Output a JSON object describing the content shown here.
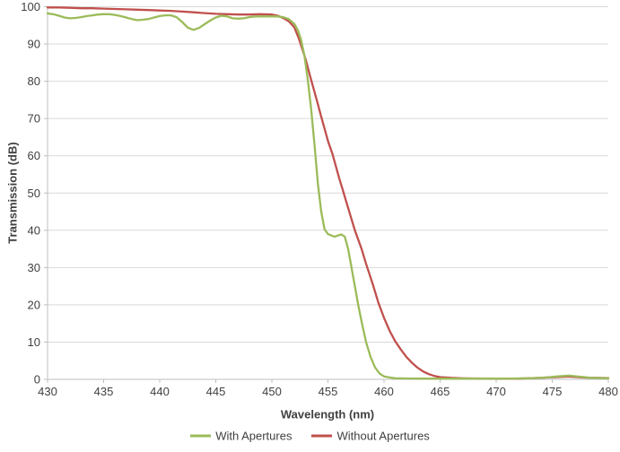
{
  "style": {
    "background": "#ffffff",
    "grid_color": "#d9d9d9",
    "axis_color": "#bfbfbf",
    "text_color": "#404040"
  },
  "chart_data": {
    "type": "line",
    "title": "",
    "xlabel": "Wavelength (nm)",
    "ylabel": "Transmission (dB)",
    "xlim": [
      430,
      480
    ],
    "ylim": [
      0,
      100
    ],
    "x_ticks": [
      430,
      435,
      440,
      445,
      450,
      455,
      460,
      465,
      470,
      475,
      480
    ],
    "y_ticks": [
      0,
      10,
      20,
      30,
      40,
      50,
      60,
      70,
      80,
      90,
      100
    ],
    "grid": "horizontal",
    "legend_position": "bottom-center",
    "series": [
      {
        "name": "Without Apertures",
        "color": "#c0504d",
        "points": [
          [
            430,
            99.8
          ],
          [
            431,
            99.8
          ],
          [
            432,
            99.7
          ],
          [
            433,
            99.6
          ],
          [
            434,
            99.6
          ],
          [
            435,
            99.5
          ],
          [
            436,
            99.4
          ],
          [
            437,
            99.3
          ],
          [
            438,
            99.2
          ],
          [
            439,
            99.1
          ],
          [
            440,
            99.0
          ],
          [
            441,
            98.9
          ],
          [
            442,
            98.7
          ],
          [
            443,
            98.5
          ],
          [
            444,
            98.3
          ],
          [
            445,
            98.1
          ],
          [
            446,
            98.0
          ],
          [
            447,
            97.9
          ],
          [
            448,
            97.9
          ],
          [
            449,
            98.0
          ],
          [
            450,
            97.9
          ],
          [
            450.5,
            97.6
          ],
          [
            451,
            97.0
          ],
          [
            451.5,
            96.1
          ],
          [
            452,
            94.5
          ],
          [
            452.4,
            91.5
          ],
          [
            453,
            86.0
          ],
          [
            453.4,
            81.5
          ],
          [
            454,
            75.0
          ],
          [
            454.4,
            70.5
          ],
          [
            455,
            64.0
          ],
          [
            455.4,
            60.5
          ],
          [
            456,
            54.0
          ],
          [
            456.3,
            51.0
          ],
          [
            457,
            44.0
          ],
          [
            457.4,
            40.0
          ],
          [
            458,
            35.0
          ],
          [
            458.4,
            31.0
          ],
          [
            459,
            25.5
          ],
          [
            459.5,
            20.5
          ],
          [
            460,
            16.5
          ],
          [
            460.5,
            13.0
          ],
          [
            461,
            10.2
          ],
          [
            461.5,
            8.0
          ],
          [
            462,
            6.0
          ],
          [
            462.5,
            4.4
          ],
          [
            463,
            3.1
          ],
          [
            463.5,
            2.1
          ],
          [
            464,
            1.4
          ],
          [
            464.5,
            0.9
          ],
          [
            465,
            0.6
          ],
          [
            466,
            0.4
          ],
          [
            467,
            0.3
          ],
          [
            468,
            0.25
          ],
          [
            470,
            0.2
          ],
          [
            472,
            0.2
          ],
          [
            473.5,
            0.35
          ],
          [
            475,
            0.55
          ],
          [
            476.5,
            0.75
          ],
          [
            478,
            0.45
          ],
          [
            480,
            0.35
          ]
        ]
      },
      {
        "name": "With Apertures",
        "color": "#9bbb59",
        "points": [
          [
            430,
            98.2
          ],
          [
            430.5,
            98.0
          ],
          [
            431,
            97.6
          ],
          [
            431.5,
            97.1
          ],
          [
            432,
            96.9
          ],
          [
            432.5,
            97.0
          ],
          [
            433,
            97.2
          ],
          [
            433.5,
            97.5
          ],
          [
            434,
            97.7
          ],
          [
            434.5,
            97.9
          ],
          [
            435,
            98.0
          ],
          [
            435.5,
            98.0
          ],
          [
            436,
            97.8
          ],
          [
            436.5,
            97.5
          ],
          [
            437,
            97.1
          ],
          [
            437.5,
            96.7
          ],
          [
            438,
            96.4
          ],
          [
            438.5,
            96.5
          ],
          [
            439,
            96.7
          ],
          [
            439.5,
            97.1
          ],
          [
            440,
            97.5
          ],
          [
            440.5,
            97.7
          ],
          [
            441,
            97.7
          ],
          [
            441.5,
            97.2
          ],
          [
            442,
            95.9
          ],
          [
            442.5,
            94.4
          ],
          [
            443,
            93.8
          ],
          [
            443.5,
            94.3
          ],
          [
            444,
            95.3
          ],
          [
            444.5,
            96.3
          ],
          [
            445,
            97.1
          ],
          [
            445.5,
            97.6
          ],
          [
            446,
            97.4
          ],
          [
            446.5,
            96.9
          ],
          [
            447,
            96.8
          ],
          [
            447.5,
            96.9
          ],
          [
            448,
            97.2
          ],
          [
            448.5,
            97.4
          ],
          [
            449,
            97.4
          ],
          [
            450,
            97.4
          ],
          [
            450.5,
            97.4
          ],
          [
            451,
            97.2
          ],
          [
            451.5,
            96.7
          ],
          [
            452,
            95.4
          ],
          [
            452.3,
            93.8
          ],
          [
            452.6,
            91.2
          ],
          [
            452.9,
            87.0
          ],
          [
            453.2,
            80.5
          ],
          [
            453.5,
            72.5
          ],
          [
            453.8,
            63.0
          ],
          [
            454.1,
            52.5
          ],
          [
            454.4,
            45.0
          ],
          [
            454.7,
            40.3
          ],
          [
            455,
            39.0
          ],
          [
            455.3,
            38.6
          ],
          [
            455.6,
            38.3
          ],
          [
            455.9,
            38.6
          ],
          [
            456.2,
            38.9
          ],
          [
            456.5,
            38.3
          ],
          [
            456.8,
            35.0
          ],
          [
            457.1,
            30.0
          ],
          [
            457.4,
            25.0
          ],
          [
            457.7,
            20.0
          ],
          [
            458,
            15.5
          ],
          [
            458.4,
            10.0
          ],
          [
            458.8,
            6.0
          ],
          [
            459.2,
            3.2
          ],
          [
            459.6,
            1.6
          ],
          [
            460,
            0.8
          ],
          [
            460.5,
            0.5
          ],
          [
            461,
            0.3
          ],
          [
            462,
            0.25
          ],
          [
            463,
            0.2
          ],
          [
            465,
            0.2
          ],
          [
            468,
            0.2
          ],
          [
            471,
            0.2
          ],
          [
            473,
            0.3
          ],
          [
            474.5,
            0.5
          ],
          [
            475.5,
            0.8
          ],
          [
            476.5,
            1.0
          ],
          [
            477.5,
            0.7
          ],
          [
            478.5,
            0.4
          ],
          [
            480,
            0.3
          ]
        ]
      }
    ],
    "legend_order": [
      "With Apertures",
      "Without Apertures"
    ]
  }
}
